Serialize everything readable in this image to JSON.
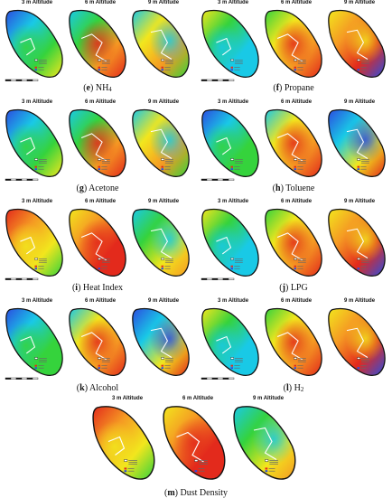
{
  "altitudes": [
    "3 m Altitude",
    "6 m Altitude",
    "9 m Altitude"
  ],
  "panels": [
    {
      "id": "e",
      "letter": "e",
      "name": "NH",
      "sub": "4",
      "scheme": "a"
    },
    {
      "id": "f",
      "letter": "f",
      "name": "Propane",
      "sub": "",
      "scheme": "b"
    },
    {
      "id": "g",
      "letter": "g",
      "name": "Acetone",
      "sub": "",
      "scheme": "a"
    },
    {
      "id": "h",
      "letter": "h",
      "name": "Toluene",
      "sub": "",
      "scheme": "c"
    },
    {
      "id": "i",
      "letter": "i",
      "name": "Heat Index",
      "sub": "",
      "scheme": "d"
    },
    {
      "id": "j",
      "letter": "j",
      "name": "LPG",
      "sub": "",
      "scheme": "b"
    },
    {
      "id": "k",
      "letter": "k",
      "name": "Alcohol",
      "sub": "",
      "scheme": "c"
    },
    {
      "id": "l",
      "letter": "l",
      "name": "H",
      "sub": "2",
      "scheme": "b"
    },
    {
      "id": "m",
      "letter": "m",
      "name": "Dust Density",
      "sub": "",
      "scheme": "d"
    }
  ],
  "colors": {
    "blue": "#2b4de0",
    "cyan": "#19c9e6",
    "green": "#35d33c",
    "yellow": "#f2e61d",
    "orange": "#f59a23",
    "red": "#e32a1c"
  }
}
